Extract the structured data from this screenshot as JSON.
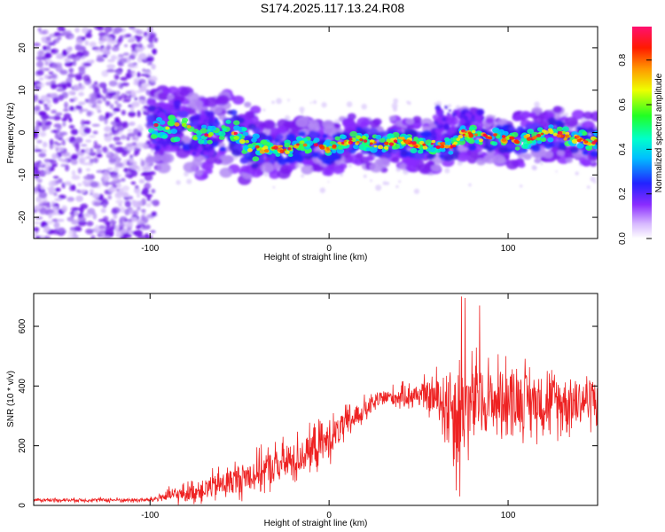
{
  "title": "S174.2025.117.13.24.R08",
  "colors": {
    "axis": "#000000",
    "snr_line": "#ee2222",
    "spectrogram_noise": "#7733ee",
    "colorscale": [
      "#ffffff",
      "#c8a0ff",
      "#7a2cff",
      "#2b2bff",
      "#00d4ff",
      "#00ff44",
      "#ffff00",
      "#ff9900",
      "#ff0000",
      "#ff1493"
    ]
  },
  "chart_data": [
    {
      "type": "heatmap",
      "xlabel": "Height of straight line (km)",
      "ylabel": "Frequency (Hz)",
      "xlim": [
        -165,
        150
      ],
      "ylim": [
        -25,
        25
      ],
      "x_ticks": [
        -100,
        0,
        100
      ],
      "y_ticks": [
        -20,
        -10,
        0,
        10,
        20
      ],
      "colorbar": {
        "label": "Normalized spectral amplitude",
        "range": [
          0,
          0.95
        ],
        "ticks": [
          0.0,
          0.2,
          0.4,
          0.6,
          0.8
        ]
      },
      "noise_region_x": [
        -165,
        -100
      ],
      "ridge": [
        {
          "x": -100,
          "y": 1
        },
        {
          "x": -90,
          "y": 1
        },
        {
          "x": -80,
          "y": 1
        },
        {
          "x": -70,
          "y": -1
        },
        {
          "x": -60,
          "y": -1
        },
        {
          "x": -55,
          "y": 1
        },
        {
          "x": -45,
          "y": -3
        },
        {
          "x": -35,
          "y": -4
        },
        {
          "x": -25,
          "y": -4
        },
        {
          "x": -15,
          "y": -3
        },
        {
          "x": -5,
          "y": -3
        },
        {
          "x": 0,
          "y": -4
        },
        {
          "x": 10,
          "y": -2
        },
        {
          "x": 20,
          "y": -2
        },
        {
          "x": 30,
          "y": -3
        },
        {
          "x": 40,
          "y": -2
        },
        {
          "x": 50,
          "y": -3
        },
        {
          "x": 60,
          "y": -3
        },
        {
          "x": 70,
          "y": -3
        },
        {
          "x": 75,
          "y": 0
        },
        {
          "x": 85,
          "y": -1
        },
        {
          "x": 95,
          "y": -1
        },
        {
          "x": 105,
          "y": -2
        },
        {
          "x": 115,
          "y": -1
        },
        {
          "x": 125,
          "y": 0
        },
        {
          "x": 135,
          "y": -1
        },
        {
          "x": 145,
          "y": -2
        }
      ]
    },
    {
      "type": "line",
      "xlabel": "Height of straight line (km)",
      "ylabel": "SNR (10 * v/v)",
      "xlim": [
        -165,
        150
      ],
      "ylim": [
        0,
        710
      ],
      "x_ticks": [
        -100,
        0,
        100
      ],
      "y_ticks": [
        0,
        200,
        400,
        600
      ],
      "series": [
        {
          "envelope": [
            {
              "x": -165,
              "mean": 18,
              "spread": 8
            },
            {
              "x": -100,
              "mean": 18,
              "spread": 10
            },
            {
              "x": -92,
              "mean": 30,
              "spread": 30
            },
            {
              "x": -80,
              "mean": 40,
              "spread": 40
            },
            {
              "x": -60,
              "mean": 70,
              "spread": 70
            },
            {
              "x": -40,
              "mean": 110,
              "spread": 90
            },
            {
              "x": -20,
              "mean": 150,
              "spread": 100
            },
            {
              "x": 0,
              "mean": 220,
              "spread": 90
            },
            {
              "x": 15,
              "mean": 300,
              "spread": 60
            },
            {
              "x": 30,
              "mean": 360,
              "spread": 40
            },
            {
              "x": 50,
              "mean": 370,
              "spread": 60
            },
            {
              "x": 60,
              "mean": 360,
              "spread": 110
            },
            {
              "x": 70,
              "mean": 330,
              "spread": 230
            },
            {
              "x": 80,
              "mean": 340,
              "spread": 200
            },
            {
              "x": 100,
              "mean": 360,
              "spread": 150
            },
            {
              "x": 120,
              "mean": 350,
              "spread": 150
            },
            {
              "x": 140,
              "mean": 350,
              "spread": 130
            },
            {
              "x": 150,
              "mean": 360,
              "spread": 110
            }
          ],
          "peaks": [
            {
              "x": 74,
              "y": 700
            },
            {
              "x": 76,
              "y": 695
            },
            {
              "x": 84,
              "y": 670
            },
            {
              "x": 71,
              "y": 50
            },
            {
              "x": 73,
              "y": 30
            }
          ]
        }
      ]
    }
  ]
}
